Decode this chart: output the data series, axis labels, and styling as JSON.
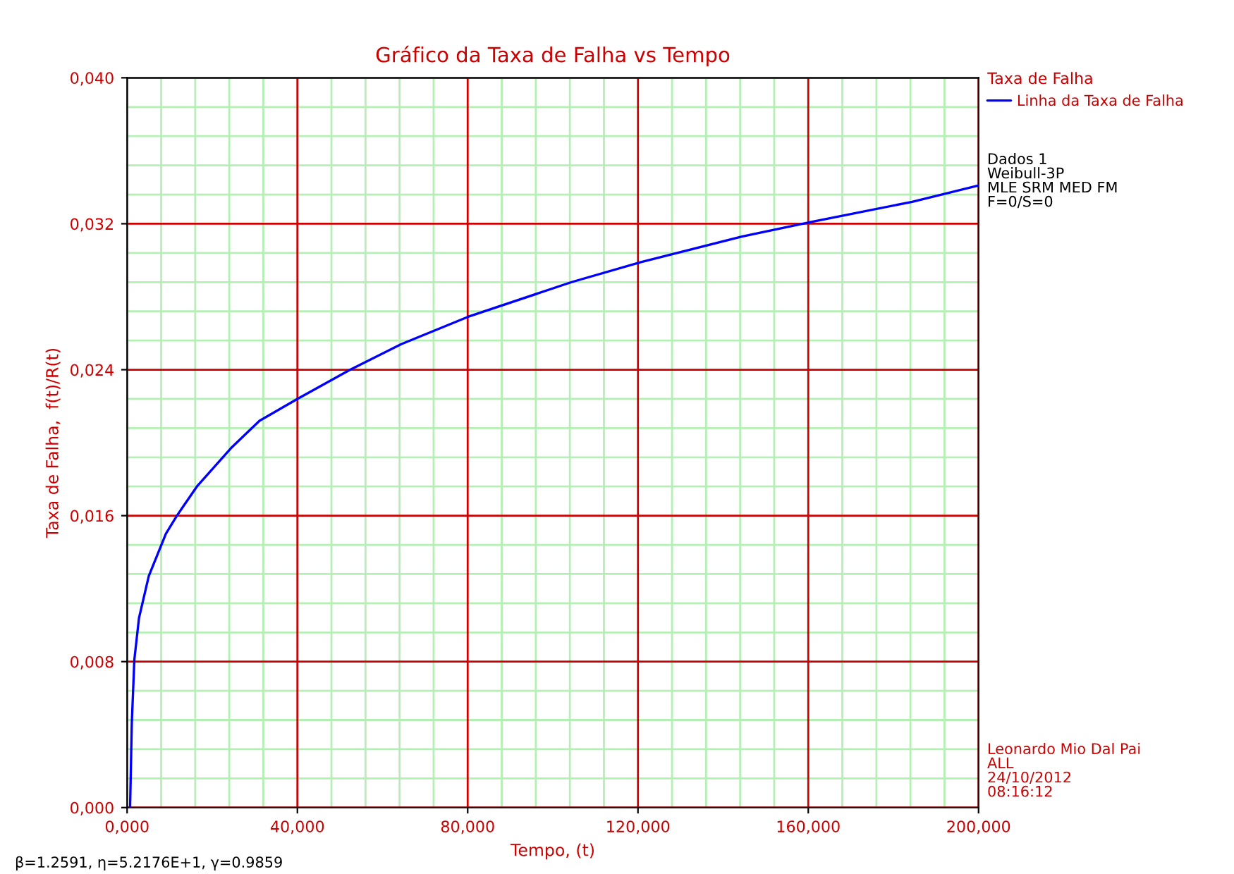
{
  "chart_data": {
    "type": "line",
    "title": "Gráfico da Taxa de Falha vs Tempo",
    "xlabel": "Tempo, (t)",
    "ylabel": "Taxa de Falha,  f(t)/R(t)",
    "legend_title": "Taxa de Falha",
    "legend": "top right",
    "grid": true,
    "marker": "none",
    "line_style": "solid",
    "x": [
      0.7,
      1.1,
      1.7,
      2.8,
      5.1,
      9.1,
      11.7,
      16.4,
      24.4,
      31.1,
      40,
      52.4,
      64.4,
      80.1,
      104.4,
      120.7,
      144.4,
      160.7,
      184.4,
      200
    ],
    "series": [
      {
        "name": "Linha da Taxa de Falha",
        "color": "#0000ff",
        "values": [
          0.0,
          0.0046,
          0.0081,
          0.0104,
          0.0127,
          0.015,
          0.016,
          0.0176,
          0.0197,
          0.0212,
          0.0224,
          0.024,
          0.0254,
          0.0269,
          0.0288,
          0.0299,
          0.0313,
          0.0321,
          0.0332,
          0.0341
        ]
      }
    ],
    "xlim": [
      0,
      200
    ],
    "ylim": [
      0,
      0.04
    ],
    "xticks": [
      {
        "value": 0,
        "label": "0,000"
      },
      {
        "value": 8,
        "label": null
      },
      {
        "value": 16,
        "label": null
      },
      {
        "value": 24,
        "label": null
      },
      {
        "value": 32,
        "label": null
      },
      {
        "value": 40,
        "label": "40,000"
      },
      {
        "value": 48,
        "label": null
      },
      {
        "value": 56,
        "label": null
      },
      {
        "value": 64,
        "label": null
      },
      {
        "value": 72,
        "label": null
      },
      {
        "value": 80,
        "label": "80,000"
      },
      {
        "value": 88,
        "label": null
      },
      {
        "value": 96,
        "label": null
      },
      {
        "value": 104,
        "label": null
      },
      {
        "value": 112,
        "label": null
      },
      {
        "value": 120,
        "label": "120,000"
      },
      {
        "value": 128,
        "label": null
      },
      {
        "value": 136,
        "label": null
      },
      {
        "value": 144,
        "label": null
      },
      {
        "value": 152,
        "label": null
      },
      {
        "value": 160,
        "label": "160,000"
      },
      {
        "value": 168,
        "label": null
      },
      {
        "value": 176,
        "label": null
      },
      {
        "value": 184,
        "label": null
      },
      {
        "value": 192,
        "label": null
      },
      {
        "value": 200,
        "label": "200,000"
      }
    ],
    "yticks": [
      {
        "value": 0,
        "label": "0,000"
      },
      {
        "value": 0.0016,
        "label": null
      },
      {
        "value": 0.0032,
        "label": null
      },
      {
        "value": 0.0048,
        "label": null
      },
      {
        "value": 0.0064,
        "label": null
      },
      {
        "value": 0.008,
        "label": "0,008"
      },
      {
        "value": 0.0096,
        "label": null
      },
      {
        "value": 0.0112,
        "label": null
      },
      {
        "value": 0.0128,
        "label": null
      },
      {
        "value": 0.0144,
        "label": null
      },
      {
        "value": 0.016,
        "label": "0,016"
      },
      {
        "value": 0.0176,
        "label": null
      },
      {
        "value": 0.0192,
        "label": null
      },
      {
        "value": 0.0208,
        "label": null
      },
      {
        "value": 0.0224,
        "label": null
      },
      {
        "value": 0.024,
        "label": "0,024"
      },
      {
        "value": 0.0256,
        "label": null
      },
      {
        "value": 0.0272,
        "label": null
      },
      {
        "value": 0.0288,
        "label": null
      },
      {
        "value": 0.0304,
        "label": null
      },
      {
        "value": 0.032,
        "label": "0,032"
      },
      {
        "value": 0.0336,
        "label": null
      },
      {
        "value": 0.0352,
        "label": null
      },
      {
        "value": 0.0368,
        "label": null
      },
      {
        "value": 0.0384,
        "label": null
      },
      {
        "value": 0.04,
        "label": "0,040"
      }
    ],
    "annotations": [
      "Dados 1\nWeibull-3P\nMLE SRM MED FM\nF=0/S=0",
      "Leonardo Mio Dal Pai\nALL\n24/10/2012\n08:16:12",
      "β=1.2591, η=5.2176E+1, γ=0.9859"
    ]
  }
}
